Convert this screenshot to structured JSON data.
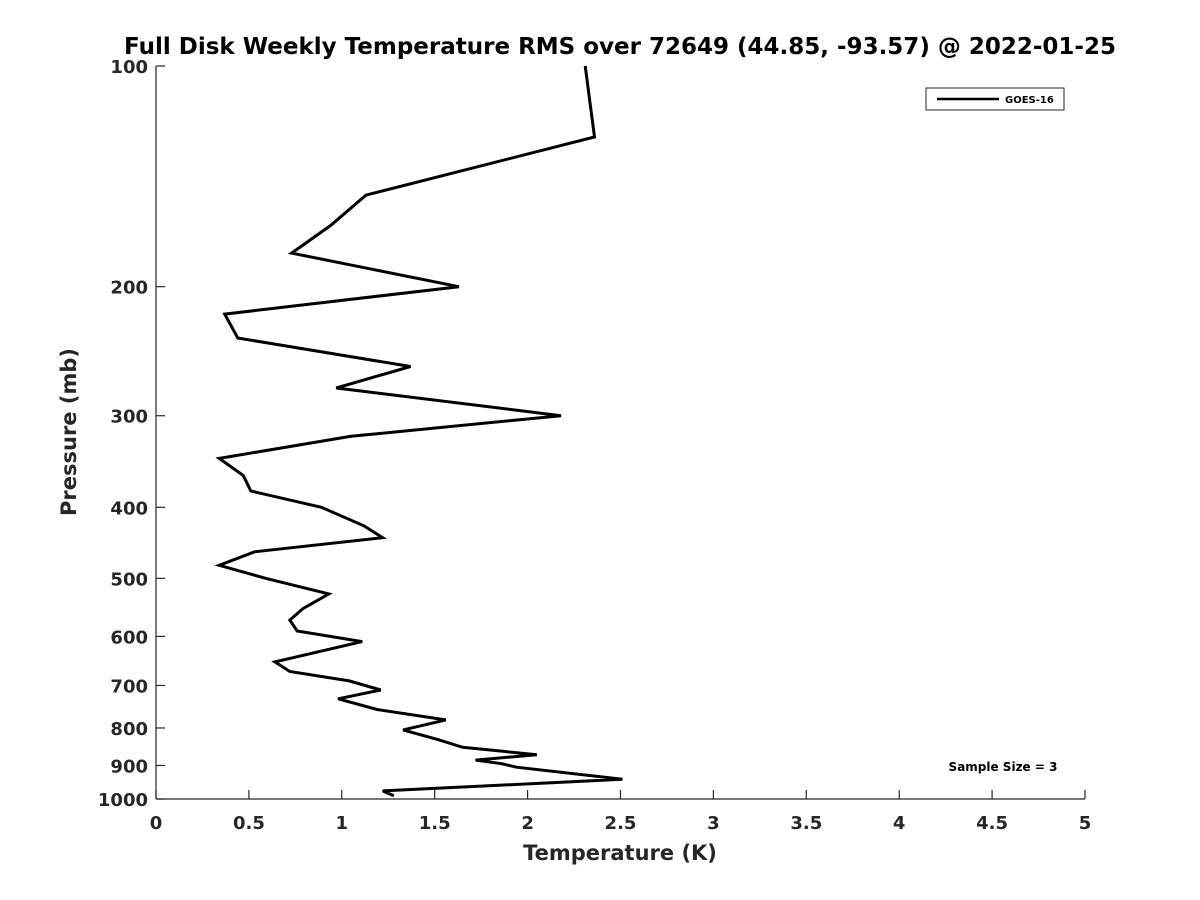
{
  "chart_data": {
    "type": "line",
    "title": "Full Disk Weekly Temperature RMS over 72649 (44.85, -93.57) @ 2022-01-25",
    "xlabel": "Temperature (K)",
    "ylabel": "Pressure (mb)",
    "xlim": [
      0,
      5
    ],
    "ylim": [
      100,
      1000
    ],
    "y_scale": "log",
    "y_reversed": true,
    "x_ticks": [
      "0",
      "0.5",
      "1",
      "1.5",
      "2",
      "2.5",
      "3",
      "3.5",
      "4",
      "4.5",
      "5"
    ],
    "y_ticks": [
      "100",
      "200",
      "300",
      "400",
      "500",
      "600",
      "700",
      "800",
      "900",
      "1000"
    ],
    "grid": false,
    "legend_position": "top-right",
    "annotation": "Sample Size = 3",
    "series": [
      {
        "name": "GOES-16",
        "color": "#000000",
        "points": [
          [
            2.31,
            100
          ],
          [
            2.36,
            125
          ],
          [
            1.13,
            150
          ],
          [
            0.94,
            165
          ],
          [
            0.73,
            180
          ],
          [
            1.63,
            200
          ],
          [
            0.37,
            218
          ],
          [
            0.44,
            235
          ],
          [
            1.37,
            257
          ],
          [
            0.97,
            275
          ],
          [
            2.18,
            300
          ],
          [
            1.05,
            320
          ],
          [
            0.34,
            343
          ],
          [
            0.47,
            362
          ],
          [
            0.51,
            380
          ],
          [
            0.89,
            400
          ],
          [
            1.12,
            424
          ],
          [
            1.22,
            440
          ],
          [
            0.53,
            460
          ],
          [
            0.34,
            480
          ],
          [
            0.59,
            500
          ],
          [
            0.93,
            525
          ],
          [
            0.79,
            550
          ],
          [
            0.72,
            570
          ],
          [
            0.76,
            590
          ],
          [
            1.11,
            610
          ],
          [
            0.64,
            650
          ],
          [
            0.72,
            670
          ],
          [
            1.04,
            690
          ],
          [
            1.21,
            710
          ],
          [
            0.98,
            730
          ],
          [
            1.19,
            755
          ],
          [
            1.56,
            780
          ],
          [
            1.33,
            805
          ],
          [
            1.52,
            830
          ],
          [
            1.65,
            850
          ],
          [
            2.05,
            870
          ],
          [
            1.72,
            885
          ],
          [
            1.86,
            895
          ],
          [
            1.94,
            905
          ],
          [
            2.51,
            940
          ],
          [
            1.22,
            975
          ],
          [
            1.28,
            990
          ]
        ]
      }
    ]
  }
}
